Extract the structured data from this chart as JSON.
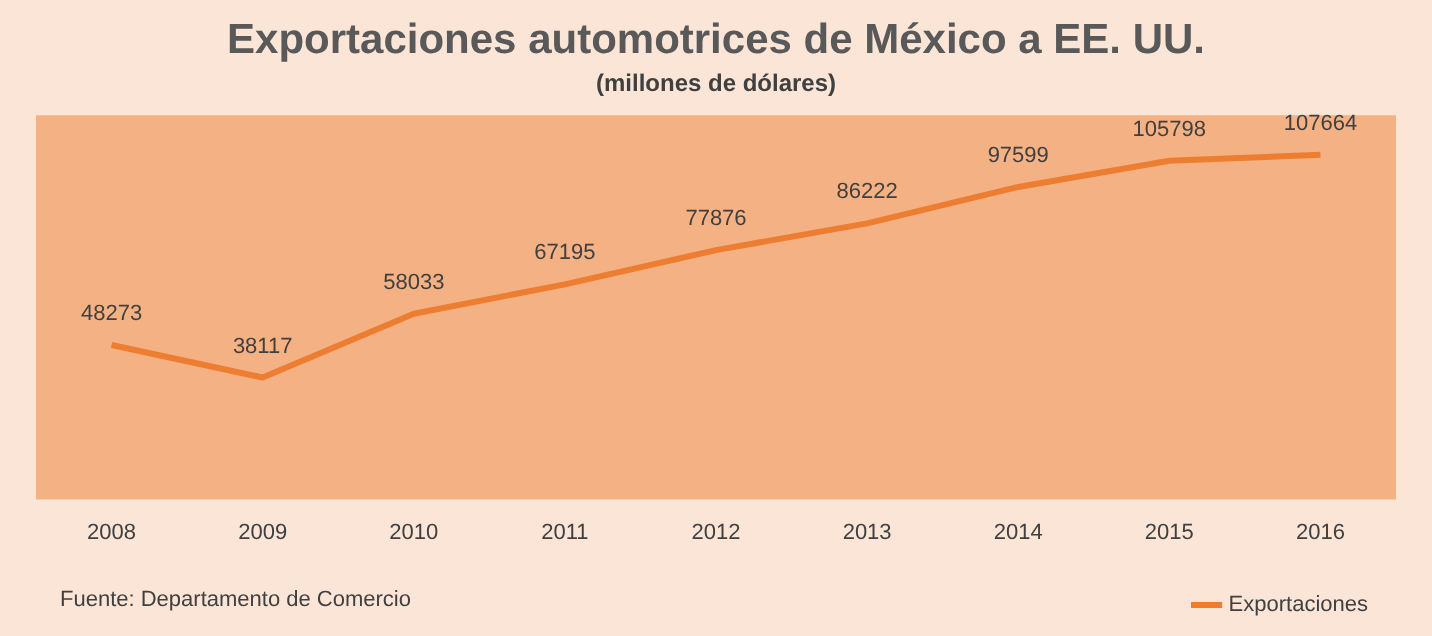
{
  "chart_data": {
    "type": "line",
    "title": "Exportaciones automotrices de México a EE. UU.",
    "subtitle": "(millones de dólares)",
    "categories": [
      "2008",
      "2009",
      "2010",
      "2011",
      "2012",
      "2013",
      "2014",
      "2015",
      "2016"
    ],
    "series": [
      {
        "name": "Exportaciones",
        "color": "#ed7d31",
        "values": [
          48273,
          38117,
          58033,
          67195,
          77876,
          86222,
          97599,
          105798,
          107664
        ]
      }
    ],
    "ylim": [
      0,
      120000
    ],
    "data_labels": true,
    "tick_labels": "x",
    "grid": false,
    "legend": "bottom right",
    "marker": "none",
    "line_style": "solid",
    "annotations": [
      "Fuente: Departamento de Comercio"
    ]
  }
}
